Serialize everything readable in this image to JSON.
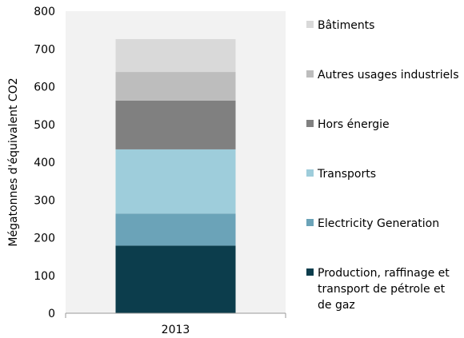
{
  "chart_data": {
    "type": "bar",
    "stacked": true,
    "categories": [
      "2013"
    ],
    "ylabel": "Mégatonnes d'équivalent CO2",
    "xlabel": "",
    "ylim": [
      0,
      800
    ],
    "yticks": [
      0,
      100,
      200,
      300,
      400,
      500,
      600,
      700,
      800
    ],
    "grid": false,
    "legend_position": "right",
    "series": [
      {
        "name": "Production, raffinage et transport de pétrole et de gaz",
        "color": "#0c3d4c",
        "values": [
          179
        ]
      },
      {
        "name": "Electricity Generation",
        "color": "#6ba3b8",
        "values": [
          85
        ]
      },
      {
        "name": "Transports",
        "color": "#9ecddb",
        "values": [
          170
        ]
      },
      {
        "name": "Hors énergie",
        "color": "#808080",
        "values": [
          129
        ]
      },
      {
        "name": "Autres usages industriels",
        "color": "#bdbdbd",
        "values": [
          76
        ]
      },
      {
        "name": "Bâtiments",
        "color": "#d9d9d9",
        "values": [
          87
        ]
      }
    ]
  }
}
